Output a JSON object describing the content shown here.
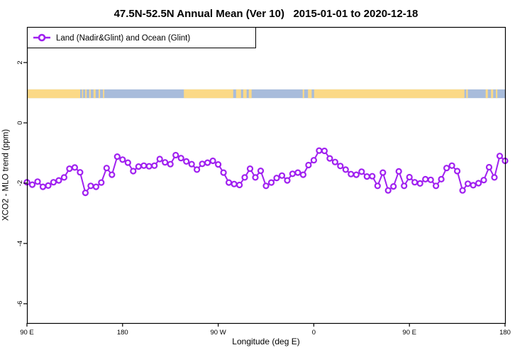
{
  "canvas": {
    "background": "#ffffff"
  },
  "chart_data": {
    "type": "line",
    "title": "47.5N-52.5N Annual Mean (Ver 10)   2015-01-01 to 2020-12-18",
    "xlabel": "Longitude (deg E)",
    "ylabel": "XCO2 - MLO trend (ppm)",
    "xlim": [
      90,
      540
    ],
    "ylim": [
      -6.64,
      3.18
    ],
    "grid": false,
    "axis_color": "#000000",
    "x_ticks": {
      "values": [
        90,
        180,
        270,
        360,
        450,
        540
      ],
      "labels": [
        "90 E",
        "180",
        "90 W",
        "0",
        "90 E",
        "180"
      ]
    },
    "y_ticks": {
      "values": [
        2,
        0,
        -2,
        -4,
        -6
      ],
      "labels": [
        "2",
        "0",
        "-2",
        "-4",
        "-6"
      ]
    },
    "legend": {
      "position": "top-left",
      "entries": [
        {
          "label": "Land (Nadir&Glint) and Ocean (Glint)",
          "color": "#A020F0",
          "marker": "open-circle"
        }
      ]
    },
    "series": [
      {
        "name": "Land (Nadir&Glint) and Ocean (Glint)",
        "color": "#A020F0",
        "marker": "open-circle",
        "marker_fill": "#ffffff",
        "x": [
          90,
          95,
          100,
          105,
          110,
          115,
          120,
          125,
          130,
          135,
          140,
          145,
          150,
          155,
          160,
          165,
          170,
          175,
          180,
          185,
          190,
          195,
          200,
          205,
          210,
          215,
          220,
          225,
          230,
          235,
          240,
          245,
          250,
          255,
          260,
          265,
          270,
          275,
          280,
          285,
          290,
          295,
          300,
          305,
          310,
          315,
          320,
          325,
          330,
          335,
          340,
          345,
          350,
          355,
          360,
          365,
          370,
          375,
          380,
          385,
          390,
          395,
          400,
          405,
          410,
          415,
          420,
          425,
          430,
          435,
          440,
          445,
          450,
          455,
          460,
          465,
          470,
          475,
          480,
          485,
          490,
          495,
          500,
          505,
          510,
          515,
          520,
          525,
          530,
          535,
          540
        ],
        "y": [
          -1.97,
          -2.05,
          -1.95,
          -2.12,
          -2.08,
          -1.97,
          -1.91,
          -1.81,
          -1.52,
          -1.48,
          -1.64,
          -2.32,
          -2.09,
          -2.12,
          -1.98,
          -1.5,
          -1.72,
          -1.12,
          -1.22,
          -1.32,
          -1.6,
          -1.45,
          -1.42,
          -1.44,
          -1.42,
          -1.2,
          -1.31,
          -1.37,
          -1.07,
          -1.17,
          -1.28,
          -1.37,
          -1.55,
          -1.36,
          -1.32,
          -1.26,
          -1.38,
          -1.65,
          -1.98,
          -2.03,
          -2.06,
          -1.81,
          -1.52,
          -1.81,
          -1.59,
          -2.09,
          -1.98,
          -1.83,
          -1.75,
          -1.91,
          -1.69,
          -1.65,
          -1.72,
          -1.4,
          -1.24,
          -0.92,
          -0.93,
          -1.18,
          -1.3,
          -1.43,
          -1.55,
          -1.7,
          -1.72,
          -1.62,
          -1.78,
          -1.77,
          -2.09,
          -1.65,
          -2.24,
          -2.11,
          -1.61,
          -2.09,
          -1.8,
          -1.97,
          -2.01,
          -1.87,
          -1.89,
          -2.09,
          -1.87,
          -1.5,
          -1.42,
          -1.6,
          -2.24,
          -2.02,
          -2.07,
          -2.0,
          -1.9,
          -1.47,
          -1.81,
          -1.1,
          -1.26
        ]
      }
    ],
    "map_strip": {
      "description": "land/ocean strip for latitude band 47.5N-52.5N",
      "y_range": [
        0.82,
        1.11
      ],
      "ocean_color": "#a8bcdb",
      "land_color": "#fbd987",
      "land_segments_lon": [
        [
          90,
          140.1
        ],
        [
          141.8,
          142.8
        ],
        [
          144.8,
          146.2
        ],
        [
          148.6,
          150.0
        ],
        [
          152.6,
          154.6
        ],
        [
          157.4,
          158.8
        ],
        [
          161.6,
          162.8
        ],
        [
          237.7,
          284.2
        ],
        [
          286.8,
          291.5
        ],
        [
          293.5,
          296.8
        ],
        [
          298.8,
          301.5
        ],
        [
          349.5,
          351.0
        ],
        [
          354.5,
          358.0
        ],
        [
          360.3,
          501.8
        ],
        [
          503.5,
          505.0
        ],
        [
          521.8,
          523.8
        ],
        [
          526.8,
          528.8
        ],
        [
          531.3,
          532.8
        ]
      ]
    }
  }
}
